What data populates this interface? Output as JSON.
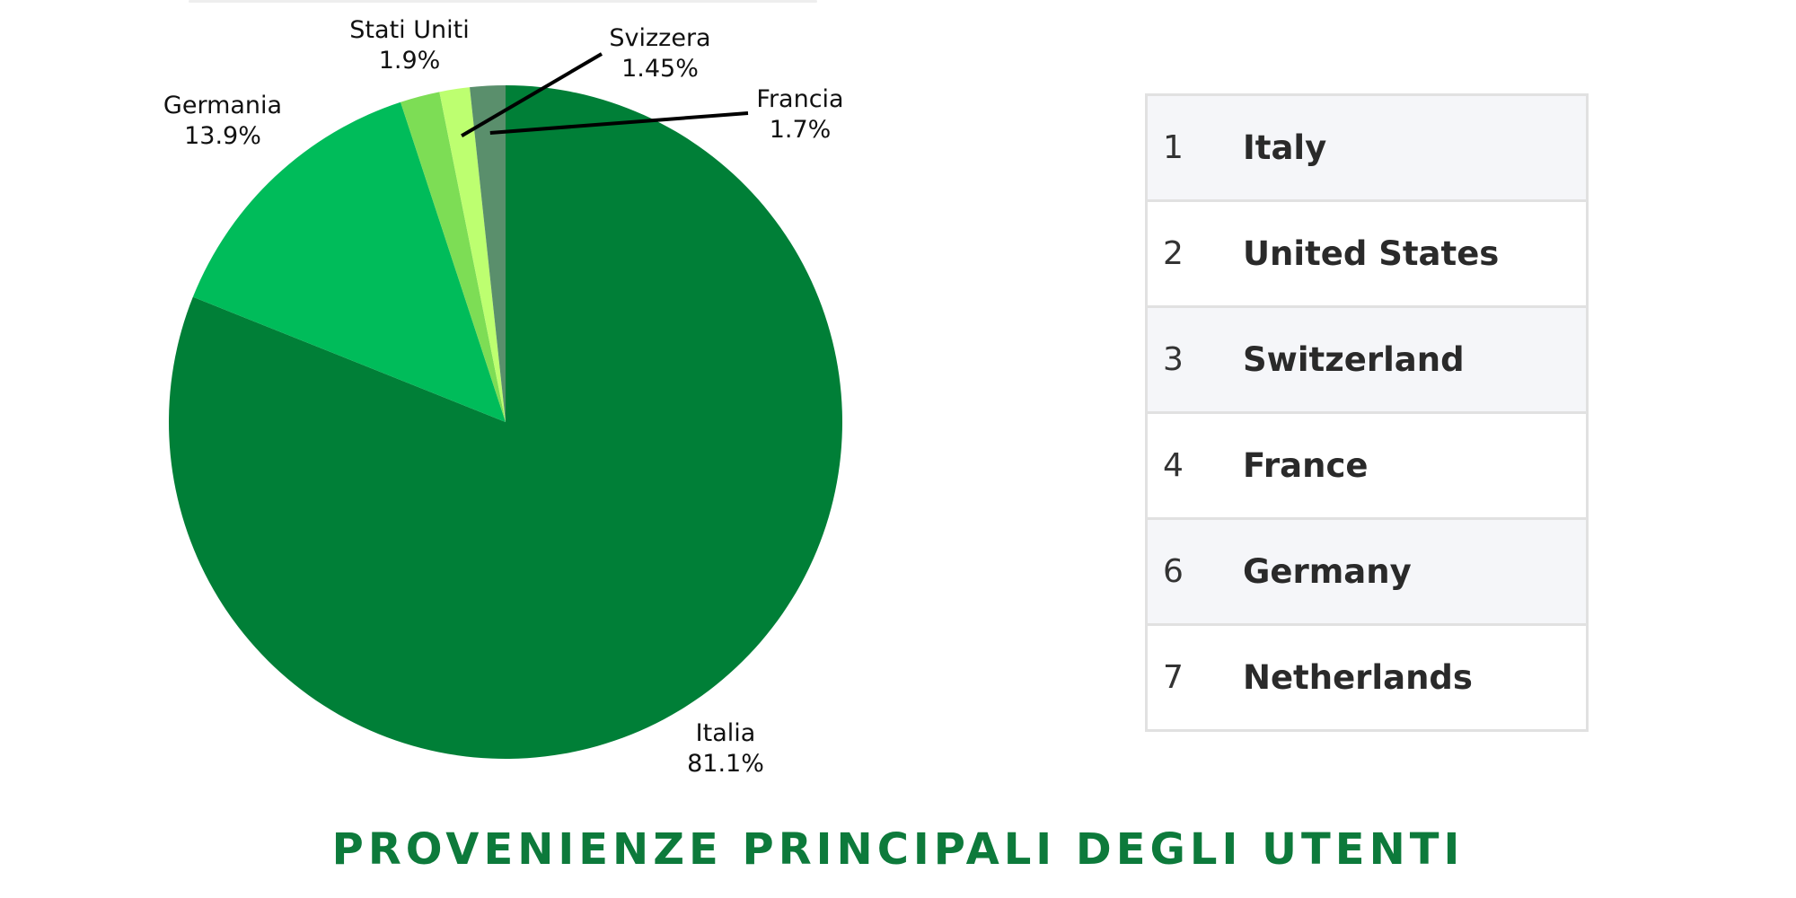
{
  "chart_data": {
    "type": "pie",
    "title": "PROVENIENZE PRINCIPALI DEGLI UTENTI",
    "slices": [
      {
        "label": "Italia",
        "value": 81.1,
        "display": "81.1%",
        "color": "#007f37"
      },
      {
        "label": "Germania",
        "value": 13.9,
        "display": "13.9%",
        "color": "#00bc5a"
      },
      {
        "label": "Stati Uniti",
        "value": 1.9,
        "display": "1.9%",
        "color": "#7ddd55"
      },
      {
        "label": "Svizzera",
        "value": 1.45,
        "display": "1.45%",
        "color": "#bdff70"
      },
      {
        "label": "Francia",
        "value": 1.7,
        "display": "1.7%",
        "color": "#5a8f6c"
      }
    ],
    "start_angle_deg": 0,
    "direction": "clockwise"
  },
  "ranking": {
    "rows": [
      {
        "rank": "1",
        "country": "Italy"
      },
      {
        "rank": "2",
        "country": "United States"
      },
      {
        "rank": "3",
        "country": "Switzerland"
      },
      {
        "rank": "4",
        "country": "France"
      },
      {
        "rank": "6",
        "country": "Germany"
      },
      {
        "rank": "7",
        "country": "Netherlands"
      }
    ]
  },
  "footer": {
    "title": "PROVENIENZE PRINCIPALI DEGLI UTENTI"
  }
}
